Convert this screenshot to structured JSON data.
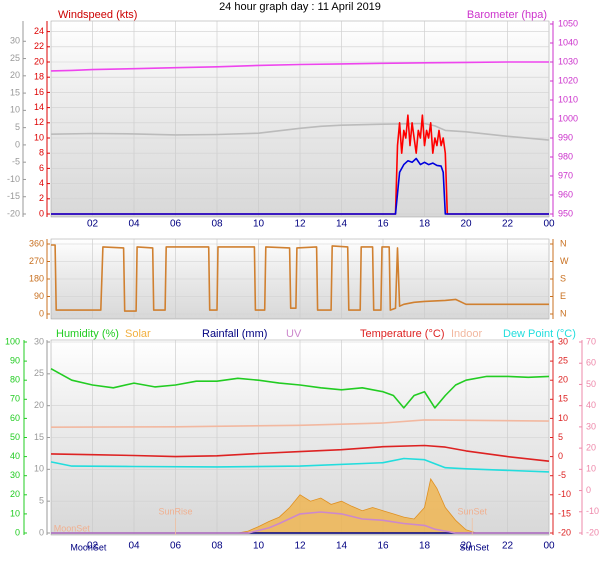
{
  "chart_data": [
    {
      "type": "line",
      "title": "24 hour graph day : 11 April 2019",
      "y_label": "Windspeed (kts)",
      "y2_label": "Barometer (hpa)",
      "xlim": [
        0,
        24
      ],
      "xticks": [
        {
          "value": 2,
          "label": "02"
        },
        {
          "value": 4,
          "label": "04"
        },
        {
          "value": 6,
          "label": "06"
        },
        {
          "value": 8,
          "label": "08"
        },
        10,
        12,
        14,
        16,
        18,
        20,
        22,
        {
          "value": 24,
          "label": "00"
        }
      ],
      "ylim": [
        0,
        25
      ],
      "yticks": [
        0,
        2,
        4,
        6,
        8,
        10,
        12,
        14,
        16,
        18,
        20,
        22,
        24
      ],
      "y2lim": [
        950,
        1050
      ],
      "y2ticks": [
        950,
        960,
        970,
        980,
        990,
        1000,
        1010,
        1020,
        1030,
        1040,
        1050
      ],
      "y3lim": [
        -20,
        35
      ],
      "y3ticks": [
        -20,
        -15,
        -10,
        -5,
        0,
        5,
        10,
        15,
        20,
        25,
        30
      ],
      "grid": true,
      "grid_axis": "y",
      "series": [
        {
          "color": "#bbbbbb",
          "axis": "y3",
          "x": [
            0,
            2,
            4,
            6,
            8,
            10,
            12,
            13,
            14,
            16,
            18,
            18.5,
            19,
            20,
            22,
            24
          ],
          "values": [
            3.1,
            3.3,
            3.2,
            2.9,
            3,
            3.4,
            4.8,
            5.4,
            5.7,
            6,
            6.2,
            5.5,
            4.2,
            3.8,
            2.5,
            1.4
          ]
        },
        {
          "color": "#ee44ee",
          "axis": "y2",
          "x": [
            0,
            1,
            2,
            4,
            6,
            8,
            10,
            12,
            14,
            16,
            18,
            20,
            22,
            24
          ],
          "values": [
            1025.3,
            1025.6,
            1026,
            1026.5,
            1027,
            1027.5,
            1028.2,
            1028.7,
            1029,
            1029.3,
            1029.6,
            1029.8,
            1030,
            1030
          ]
        },
        {
          "color": "#ff0000",
          "axis": "y",
          "x": [
            0,
            16.6,
            16.7,
            16.8,
            16.9,
            17,
            17.1,
            17.2,
            17.3,
            17.4,
            17.5,
            17.6,
            17.7,
            17.8,
            17.9,
            18,
            18.1,
            18.2,
            18.3,
            18.4,
            18.5,
            18.6,
            18.7,
            18.8,
            18.9,
            19,
            19.1,
            24
          ],
          "values": [
            0,
            0,
            9,
            12,
            8,
            11,
            10,
            13,
            9,
            12,
            10,
            8,
            11,
            10,
            13,
            9,
            11,
            10,
            12,
            8,
            10,
            9,
            11,
            9,
            10,
            8,
            0,
            0
          ]
        },
        {
          "color": "#0000dd",
          "axis": "y",
          "x": [
            0,
            16.6,
            16.8,
            17,
            17.2,
            17.4,
            17.6,
            17.8,
            18,
            18.2,
            18.4,
            18.6,
            18.8,
            18.9,
            19,
            24
          ],
          "values": [
            0,
            0,
            5.5,
            6.5,
            7,
            6.8,
            7.3,
            6.5,
            6.8,
            6.5,
            6.7,
            6.4,
            6.3,
            5.5,
            0,
            0
          ]
        }
      ]
    },
    {
      "type": "line",
      "xlim": [
        0,
        24
      ],
      "ylim": [
        0,
        360
      ],
      "yticks": [
        0,
        90,
        180,
        270,
        360
      ],
      "y2lim": [
        0,
        360
      ],
      "y2ticks": [
        {
          "value": 0,
          "label": "N"
        },
        {
          "value": 90,
          "label": "E"
        },
        {
          "value": 180,
          "label": "S"
        },
        {
          "value": 270,
          "label": "W"
        },
        {
          "value": 360,
          "label": "N"
        }
      ],
      "grid": true,
      "grid_axis": "y",
      "series": [
        {
          "color": "#d08030",
          "axis": "y",
          "x": [
            0,
            0.2,
            0.25,
            2.4,
            2.5,
            3.5,
            3.55,
            4.1,
            4.15,
            4.9,
            4.95,
            5.5,
            5.55,
            7.6,
            7.65,
            8,
            8.05,
            9.8,
            9.85,
            10.3,
            10.35,
            11.5,
            11.55,
            11.8,
            11.85,
            12.8,
            12.85,
            13.5,
            13.55,
            14.3,
            14.35,
            14.9,
            14.95,
            15.5,
            15.55,
            15.9,
            15.95,
            16.3,
            16.35,
            16.6,
            16.7,
            16.8,
            17,
            17.5,
            18,
            19,
            19.5,
            20,
            24
          ],
          "values": [
            355,
            355,
            20,
            20,
            345,
            340,
            15,
            15,
            345,
            340,
            20,
            20,
            345,
            345,
            20,
            20,
            345,
            345,
            20,
            20,
            345,
            340,
            30,
            30,
            340,
            345,
            20,
            20,
            350,
            345,
            20,
            20,
            345,
            345,
            20,
            20,
            345,
            345,
            20,
            30,
            340,
            40,
            50,
            60,
            65,
            70,
            75,
            50,
            50
          ]
        }
      ]
    },
    {
      "type": "line",
      "xlim": [
        0,
        24
      ],
      "xticks": [
        {
          "value": 2,
          "label": "02"
        },
        {
          "value": 4,
          "label": "04"
        },
        {
          "value": 6,
          "label": "06"
        },
        {
          "value": 8,
          "label": "08"
        },
        10,
        12,
        14,
        16,
        18,
        20,
        22,
        {
          "value": 24,
          "label": "00"
        }
      ],
      "ylim": [
        0,
        100
      ],
      "yticks": [
        0,
        10,
        20,
        30,
        40,
        50,
        60,
        70,
        80,
        90,
        100
      ],
      "y3lim": [
        0,
        30
      ],
      "y3ticks": [
        0,
        5,
        10,
        15,
        20,
        25,
        30
      ],
      "y2lim": [
        -20,
        30
      ],
      "y2ticks": [
        -20,
        -15,
        -10,
        -5,
        0,
        5,
        10,
        15,
        20,
        25,
        30
      ],
      "y4lim": [
        -20,
        70
      ],
      "y4ticks": [
        -20,
        -10,
        0,
        10,
        20,
        30,
        40,
        50,
        60,
        70
      ],
      "grid": true,
      "grid_axis": "y3",
      "annotations": [
        {
          "text": "MoonSet",
          "x": 1
        },
        {
          "text": "SunRise",
          "x": 6
        },
        {
          "text": "SunSet",
          "x": 20.3
        }
      ],
      "x_annotations": [
        {
          "text": "MoonSet",
          "x": 1.8
        },
        {
          "text": "SunSet",
          "x": 20.4
        }
      ],
      "series": [
        {
          "name": "Humidity (%)",
          "color": "#22cc22",
          "axis": "y",
          "x": [
            0,
            1,
            2,
            3,
            4,
            5,
            6,
            7,
            8,
            9,
            10,
            11,
            12,
            13,
            14,
            15,
            16,
            16.5,
            17,
            17.5,
            18,
            18.5,
            19,
            19.5,
            20,
            21,
            22,
            23,
            24
          ],
          "values": [
            86,
            80,
            77.5,
            76,
            78.5,
            76.5,
            77.5,
            79.5,
            79.5,
            81,
            80,
            78.5,
            77.5,
            76,
            75,
            76,
            74,
            72,
            65.5,
            72,
            74,
            65.5,
            72,
            77.5,
            80,
            82,
            82,
            81.5,
            82
          ]
        },
        {
          "name": "Solar",
          "color": "#f2b040",
          "axis": "y3",
          "fill": true,
          "x": [
            0,
            9,
            9.5,
            10,
            10.5,
            11,
            11.5,
            12,
            12.5,
            13,
            13.5,
            14,
            14.5,
            15,
            15.5,
            16,
            16.5,
            17,
            17.5,
            18,
            18.3,
            18.6,
            19,
            19.5,
            20,
            20.5,
            24
          ],
          "values": [
            0,
            0,
            0.3,
            1,
            1.8,
            2.5,
            4,
            6,
            5,
            5.5,
            4.5,
            5,
            4.2,
            3.5,
            4,
            3.5,
            3,
            2.5,
            2.2,
            4,
            8.5,
            7,
            4,
            2,
            0.5,
            0,
            0
          ]
        },
        {
          "name": "Rainfall (mm)",
          "color": "#000080",
          "axis": "y3",
          "x": [
            0,
            24
          ],
          "values": [
            0,
            0
          ]
        },
        {
          "name": "UV",
          "color": "#cc88cc",
          "axis": "y3",
          "x": [
            0,
            9.5,
            10.5,
            11,
            12,
            13,
            14,
            15,
            16,
            17,
            18,
            18.5,
            19,
            19.5,
            24
          ],
          "values": [
            0,
            0,
            0.8,
            1.5,
            3,
            3.3,
            3,
            2.2,
            2,
            1.5,
            1.2,
            0.6,
            0.3,
            0,
            0
          ]
        },
        {
          "name": "Temperature (°C)",
          "color": "#dd2222",
          "axis": "y2",
          "x": [
            0,
            2,
            4,
            6,
            8,
            10,
            12,
            14,
            16,
            18,
            19,
            20,
            22,
            24
          ],
          "values": [
            0.7,
            0.5,
            0.3,
            0,
            0.2,
            0.8,
            1.3,
            1.8,
            2.6,
            2.9,
            2.5,
            1.5,
            0,
            -1.2
          ]
        },
        {
          "name": "Indoor",
          "color": "#f2b8a0",
          "axis": "y2",
          "x": [
            0,
            6,
            12,
            16,
            18,
            24
          ],
          "values": [
            7.7,
            7.8,
            8.2,
            8.8,
            9.6,
            9.3
          ]
        },
        {
          "name": "Dew Point (°C)",
          "color": "#22dddd",
          "axis": "y2",
          "x": [
            0,
            1,
            4,
            8,
            12,
            16,
            17,
            18,
            19,
            20,
            24
          ],
          "values": [
            -1.4,
            -2.5,
            -2.6,
            -2.7,
            -2.5,
            -1.6,
            -0.5,
            -0.8,
            -2.9,
            -3.2,
            -4
          ]
        }
      ]
    }
  ]
}
